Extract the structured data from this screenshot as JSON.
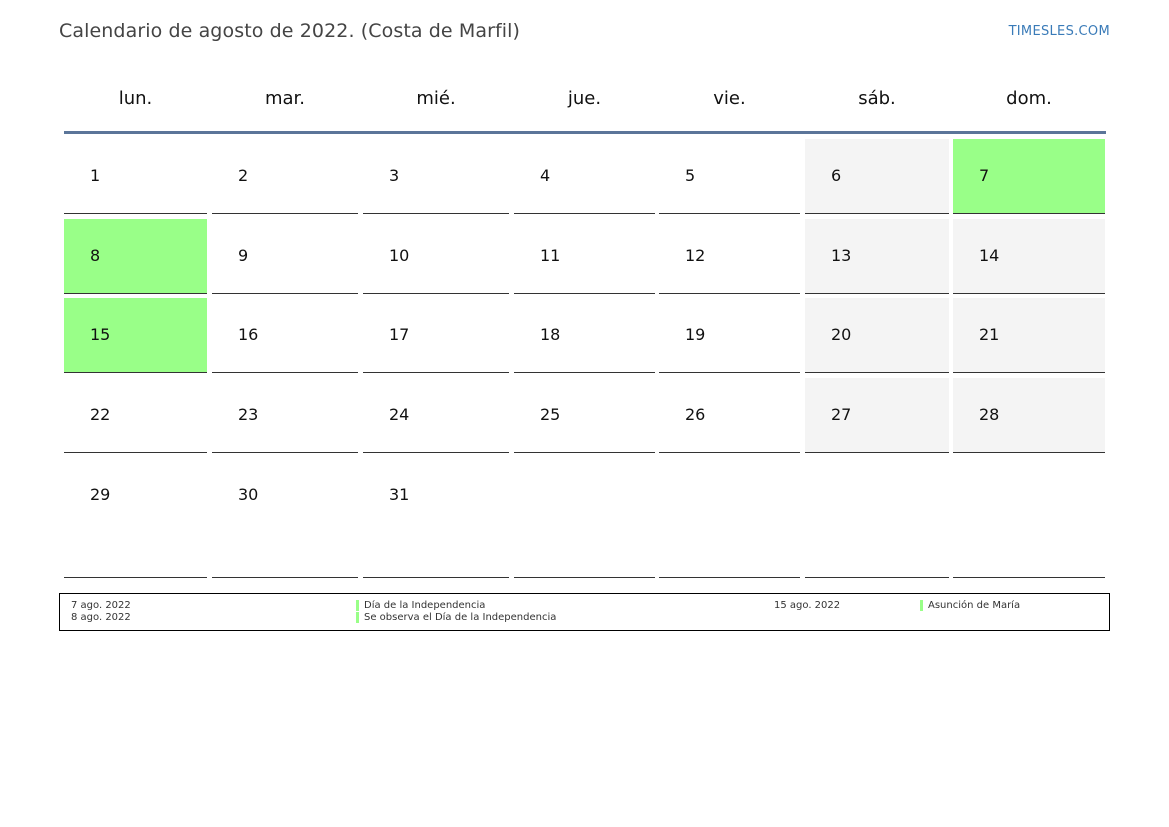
{
  "header": {
    "title": "Calendario de agosto de 2022. (Costa de Marfil)",
    "brand": "TIMESLES.COM"
  },
  "weekdays": [
    "lun.",
    "mar.",
    "mié.",
    "jue.",
    "vie.",
    "sáb.",
    "dom."
  ],
  "weeks": [
    [
      "1",
      "2",
      "3",
      "4",
      "5",
      "6",
      "7"
    ],
    [
      "8",
      "9",
      "10",
      "11",
      "12",
      "13",
      "14"
    ],
    [
      "15",
      "16",
      "17",
      "18",
      "19",
      "20",
      "21"
    ],
    [
      "22",
      "23",
      "24",
      "25",
      "26",
      "27",
      "28"
    ],
    [
      "29",
      "30",
      "31",
      "",
      "",
      "",
      ""
    ]
  ],
  "holiday_days": [
    "7",
    "8",
    "15"
  ],
  "colors": {
    "holiday": "#99ff88",
    "weekend": "#f4f4f4",
    "header_rule": "#5b7599",
    "brand": "#3a7bb8"
  },
  "legend": [
    {
      "date": "7 ago. 2022",
      "name": "Día de la Independencia"
    },
    {
      "date": "8 ago. 2022",
      "name": "Se observa el Día de la Independencia"
    },
    {
      "date": "15 ago. 2022",
      "name": "Asunción de María"
    }
  ]
}
